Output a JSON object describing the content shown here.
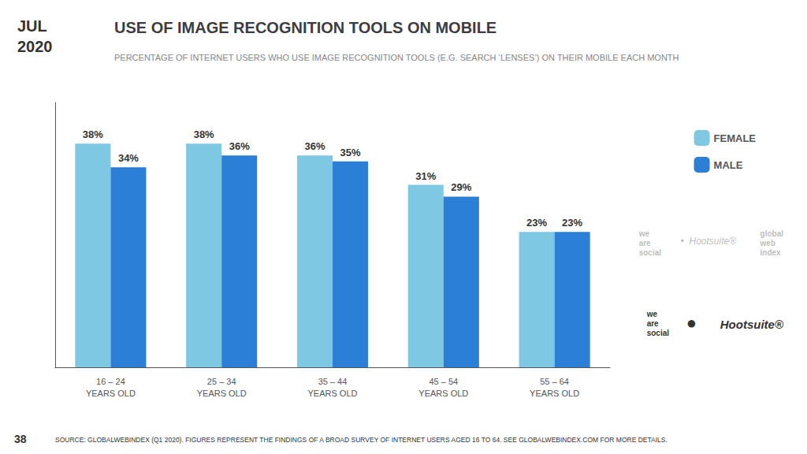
{
  "chart_data": {
    "type": "bar",
    "title": "USE OF IMAGE RECOGNITION TOOLS ON MOBILE",
    "subtitle": "PERCENTAGE OF INTERNET USERS WHO USE IMAGE RECOGNITION TOOLS (E.G. SEARCH ‘LENSES’) ON THEIR MOBILE EACH MONTH",
    "categories": [
      "16 – 24\nYEARS OLD",
      "25 – 34\nYEARS OLD",
      "35 – 44\nYEARS OLD",
      "45 – 54\nYEARS OLD",
      "55 – 64\nYEARS OLD"
    ],
    "series": [
      {
        "name": "FEMALE",
        "color": "#7ec8e3",
        "values": [
          38,
          38,
          36,
          31,
          23
        ],
        "value_labels": [
          "38%",
          "38%",
          "36%",
          "31%",
          "23%"
        ]
      },
      {
        "name": "MALE",
        "color": "#2b7fd4",
        "values": [
          34,
          36,
          35,
          29,
          23
        ],
        "value_labels": [
          "34%",
          "36%",
          "35%",
          "29%",
          "23%"
        ]
      }
    ],
    "ylim": [
      0,
      45
    ],
    "grid": false,
    "legend": "right",
    "data_labels": true,
    "tick_labels": "x",
    "annotations": [
      "JUL\n2020",
      "SOURCE: GLOBALWEBINDEX (Q1 2020). FIGURES REPRESENT THE FINDINGS OF A BROAD SURVEY OF INTERNET USERS AGED 16 TO 64. SEE GLOBALWEBINDEX.COM FOR MORE DETAILS.",
      "38",
      "we\nare\nsocial",
      "●",
      "Hootsuite®",
      "we\nare\nsocial",
      "•  Hootsuite®",
      "global\nweb\nindex"
    ]
  }
}
